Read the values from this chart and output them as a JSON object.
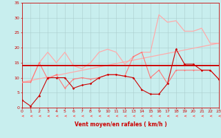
{
  "xlabel": "Vent moyen/en rafales ( km/h )",
  "bg_color": "#c8eeee",
  "grid_color": "#aacccc",
  "xlim": [
    0,
    23
  ],
  "ylim": [
    0,
    35
  ],
  "yticks": [
    0,
    5,
    10,
    15,
    20,
    25,
    30,
    35
  ],
  "xticks": [
    0,
    1,
    2,
    3,
    4,
    5,
    6,
    7,
    8,
    9,
    10,
    11,
    12,
    13,
    14,
    15,
    16,
    17,
    18,
    19,
    20,
    21,
    22,
    23
  ],
  "tick_color": "#cc0000",
  "spine_color": "#cc0000",
  "xlabel_color": "#cc0000",
  "trend_color": "#ffaaaa",
  "light_color": "#ffaaaa",
  "med_color": "#ff7777",
  "dark_color": "#cc0000",
  "arrow_color": "#ff4444",
  "trend_y_start": 8.5,
  "trend_y_end": 21.5,
  "horiz_y": 14.0,
  "light_y": [
    8.5,
    8.5,
    15,
    18.5,
    15,
    18.5,
    14,
    13,
    15,
    18.5,
    19.5,
    18.5,
    14.5,
    17,
    18.5,
    18.5,
    31,
    28.5,
    29,
    25.5,
    25.5,
    26.5,
    21.5,
    21.5
  ],
  "med_y": [
    8.5,
    8.5,
    15,
    9.5,
    11,
    6.5,
    9.5,
    10,
    9.5,
    10,
    11,
    11,
    10.5,
    17,
    18.5,
    10,
    12.5,
    8,
    12.5,
    12.5,
    12.5,
    12.5,
    12.5,
    9.5
  ],
  "dark_y": [
    2.5,
    0.5,
    4,
    10,
    10,
    10,
    6.5,
    7.5,
    8,
    10,
    11,
    11,
    10.5,
    10,
    6,
    4.5,
    4.5,
    8,
    19.5,
    14.5,
    14.5,
    12.5,
    12.5,
    9.5
  ]
}
